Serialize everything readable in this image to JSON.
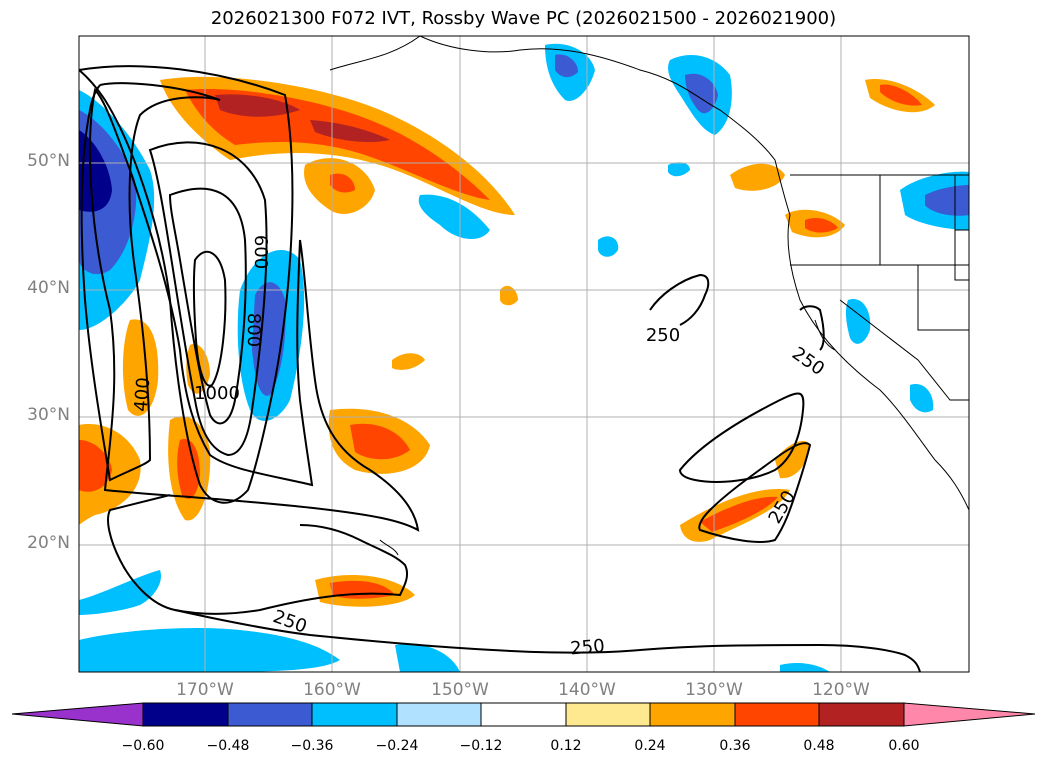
{
  "title": "2026021300 F072 IVT, Rossby Wave PC (2026021500 - 2026021900)",
  "map": {
    "lon_labels": [
      "170°W",
      "160°W",
      "150°W",
      "140°W",
      "130°W",
      "120°W"
    ],
    "lat_labels": [
      "50°N",
      "40°N",
      "30°N",
      "20°N"
    ],
    "contour_labels": [
      "600",
      "800",
      "1000",
      "400",
      "250",
      "250",
      "250",
      "250",
      "250"
    ]
  },
  "colorbar": {
    "colors": [
      "#9932cc",
      "#00008b",
      "#3c5ad2",
      "#00bfff",
      "#b0e2ff",
      "#ffffff",
      "#ffe990",
      "#ffa500",
      "#ff4500",
      "#b22222",
      "#ff88aa"
    ],
    "tick_labels": [
      "−0.60",
      "−0.48",
      "−0.36",
      "−0.24",
      "−0.12",
      "0.12",
      "0.24",
      "0.36",
      "0.48",
      "0.60"
    ]
  },
  "icons": [
    "contour-line",
    "coastline",
    "state-border",
    "grid-line"
  ]
}
